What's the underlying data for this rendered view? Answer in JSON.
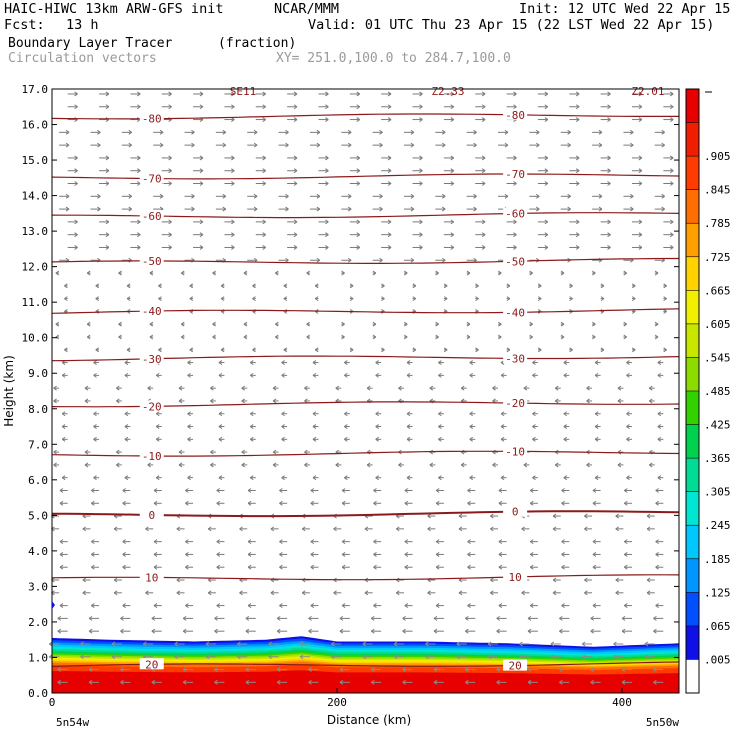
{
  "header": {
    "title": "HAIC-HIWC 13km ARW-GFS init",
    "org": "NCAR/MMM",
    "init": "Init: 12 UTC Wed 22 Apr 15",
    "fcst_label": "Fcst:",
    "fcst_value": "13 h",
    "valid": "Valid: 01 UTC Thu 23 Apr 15 (22 LST Wed 22 Apr 15)",
    "field": "Boundary Layer Tracer",
    "units": "(fraction)",
    "vectors": "Circulation vectors",
    "xy": "XY= 251.0,100.0 to 284.7,100.0"
  },
  "chart_data": {
    "type": "cross-section",
    "xlabel": "Distance (km)",
    "ylabel": "Height (km)",
    "xlim": [
      0,
      440
    ],
    "ylim": [
      0,
      17
    ],
    "x_ticks": [
      "0",
      "200",
      "400"
    ],
    "x_tick_values": [
      0,
      200,
      400
    ],
    "x_end_labels": {
      "left": "5n54w",
      "right": "5n50w"
    },
    "y_ticks": [
      "0.0",
      "1.0",
      "2.0",
      "3.0",
      "4.0",
      "5.0",
      "6.0",
      "7.0",
      "8.0",
      "9.0",
      "10.0",
      "11.0",
      "12.0",
      "13.0",
      "14.0",
      "15.0",
      "16.0",
      "17.0"
    ],
    "temperature_contours": [
      {
        "label": "20",
        "height_km": 0.75
      },
      {
        "label": "10",
        "height_km": 3.2
      },
      {
        "label": "0",
        "height_km": 5.0
      },
      {
        "label": "-10",
        "height_km": 6.7
      },
      {
        "label": "-20",
        "height_km": 8.1
      },
      {
        "label": "-30",
        "height_km": 9.4
      },
      {
        "label": "-40",
        "height_km": 10.7
      },
      {
        "label": "-50",
        "height_km": 12.1
      },
      {
        "label": "-60",
        "height_km": 13.4
      },
      {
        "label": "-70",
        "height_km": 14.5
      },
      {
        "label": "-80",
        "height_km": 16.2
      }
    ],
    "colorbar": {
      "labels": [
        ".005",
        ".065",
        ".125",
        ".185",
        ".245",
        ".305",
        ".365",
        ".425",
        ".485",
        ".545",
        ".605",
        ".665",
        ".725",
        ".785",
        ".845",
        ".905"
      ],
      "colors": [
        "#ffffff",
        "#1010e6",
        "#0050ff",
        "#0096ff",
        "#00c8ff",
        "#00e6d2",
        "#00dc96",
        "#00d250",
        "#32d200",
        "#8cdc00",
        "#c8e600",
        "#f0f000",
        "#ffd200",
        "#ffa000",
        "#ff6e00",
        "#ff3c00",
        "#f01e00",
        "#e60000"
      ]
    },
    "tracer_top_km": [
      {
        "x": 0,
        "top": 1.55
      },
      {
        "x": 40,
        "top": 1.5
      },
      {
        "x": 100,
        "top": 1.45
      },
      {
        "x": 150,
        "top": 1.5
      },
      {
        "x": 175,
        "top": 1.6
      },
      {
        "x": 200,
        "top": 1.45
      },
      {
        "x": 260,
        "top": 1.45
      },
      {
        "x": 320,
        "top": 1.4
      },
      {
        "x": 380,
        "top": 1.3
      },
      {
        "x": 410,
        "top": 1.35
      },
      {
        "x": 440,
        "top": 1.4
      }
    ],
    "upper_strip_labels": [
      "SE11",
      "Z2.33",
      "Z2.01"
    ]
  }
}
